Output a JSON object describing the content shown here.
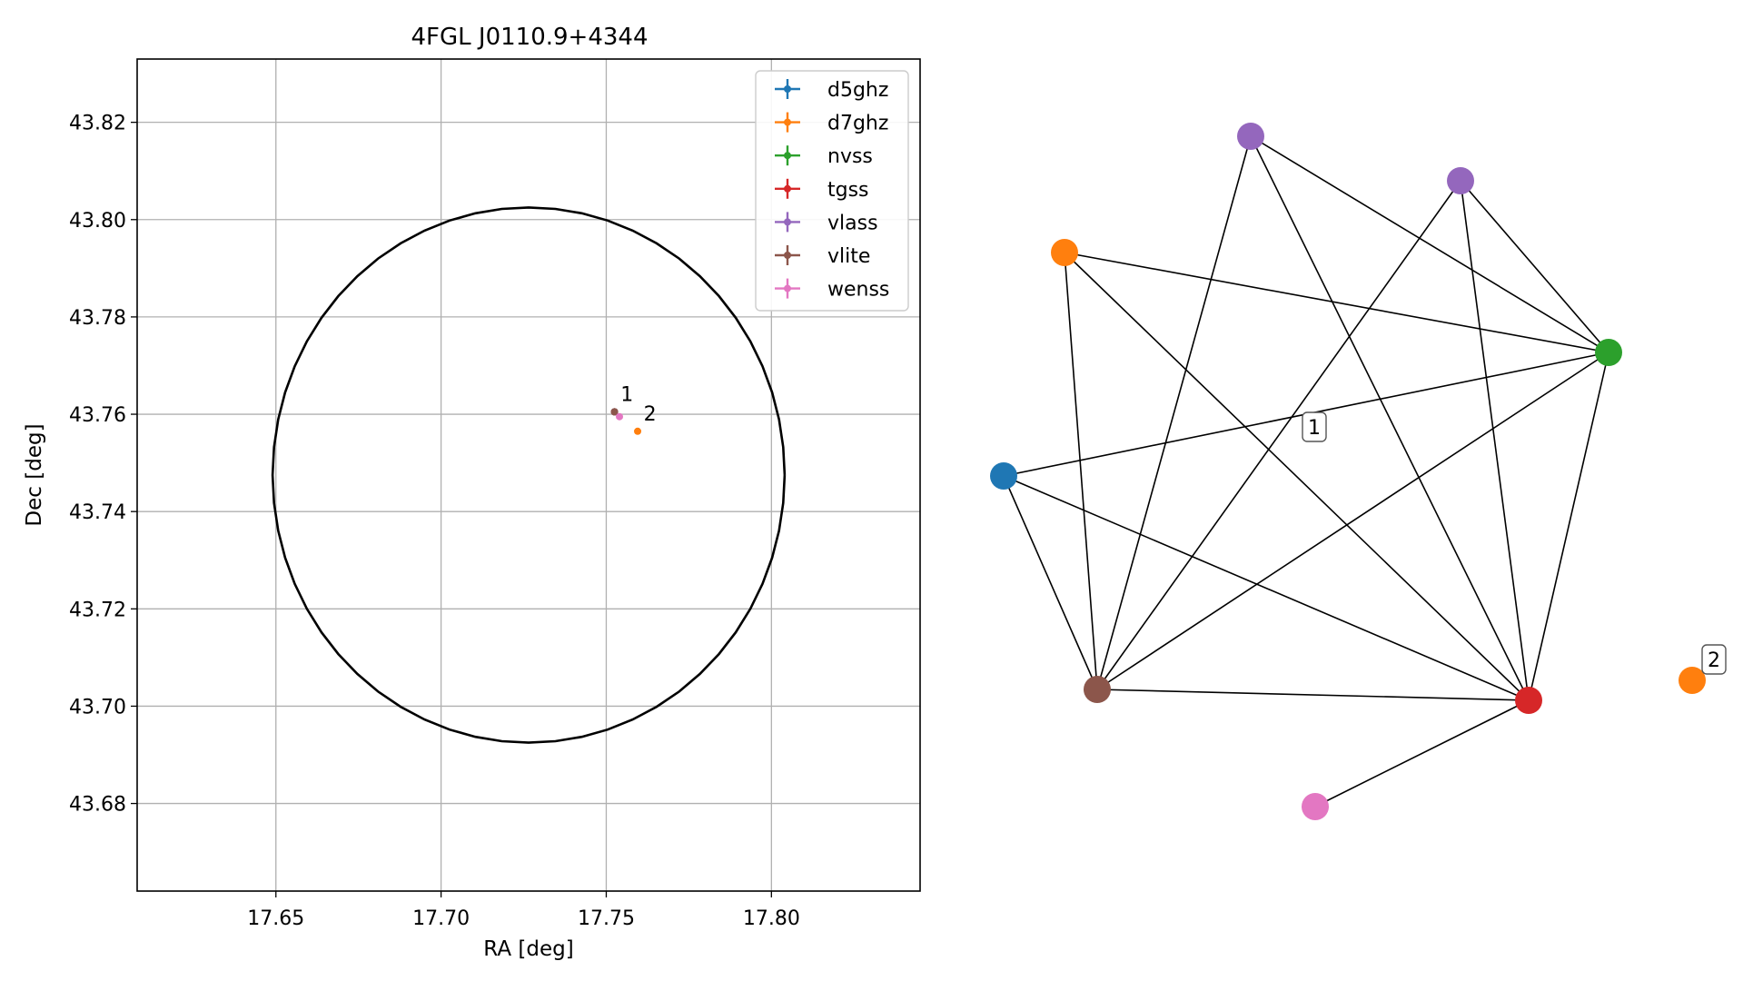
{
  "chart_data": [
    {
      "type": "scatter",
      "title": "4FGL J0110.9+4344",
      "xlabel": "RA [deg]",
      "ylabel": "Dec [deg]",
      "xlim": [
        17.608,
        17.845
      ],
      "ylim": [
        43.662,
        43.833
      ],
      "xticks": [
        17.65,
        17.7,
        17.75,
        17.8
      ],
      "xtick_labels": [
        "17.65",
        "17.70",
        "17.75",
        "17.80"
      ],
      "yticks": [
        43.68,
        43.7,
        43.72,
        43.74,
        43.76,
        43.78,
        43.8,
        43.82
      ],
      "ytick_labels": [
        "43.68",
        "43.70",
        "43.72",
        "43.74",
        "43.76",
        "43.78",
        "43.80",
        "43.82"
      ],
      "grid": true,
      "legend_position": "top-right",
      "ellipse": {
        "center": [
          17.7265,
          43.7475
        ],
        "semi_axis_ra": 0.0775,
        "semi_axis_dec": 0.055
      },
      "series": [
        {
          "name": "d5ghz",
          "color": "#1f77b4",
          "points": [
            {
              "x": 17.7525,
              "y": 43.7605
            }
          ]
        },
        {
          "name": "d7ghz",
          "color": "#ff7f0e",
          "points": [
            {
              "x": 17.7525,
              "y": 43.7605
            },
            {
              "x": 17.7595,
              "y": 43.7565
            }
          ]
        },
        {
          "name": "nvss",
          "color": "#2ca02c",
          "points": [
            {
              "x": 17.7525,
              "y": 43.7605
            }
          ]
        },
        {
          "name": "tgss",
          "color": "#d62728",
          "points": [
            {
              "x": 17.7525,
              "y": 43.7605
            }
          ]
        },
        {
          "name": "vlass",
          "color": "#9467bd",
          "points": [
            {
              "x": 17.7525,
              "y": 43.7605
            }
          ]
        },
        {
          "name": "vlite",
          "color": "#8c564b",
          "points": [
            {
              "x": 17.7525,
              "y": 43.7605
            }
          ]
        },
        {
          "name": "wenss",
          "color": "#e377c2",
          "points": [
            {
              "x": 17.754,
              "y": 43.7595
            }
          ]
        }
      ],
      "annotations": [
        {
          "text": "1",
          "x": 17.7535,
          "y": 43.762
        },
        {
          "text": "2",
          "x": 17.7605,
          "y": 43.758
        }
      ]
    },
    {
      "type": "network",
      "nodes": [
        {
          "id": "n1",
          "color": "#9467bd"
        },
        {
          "id": "n2",
          "color": "#9467bd"
        },
        {
          "id": "n3",
          "color": "#ff7f0e"
        },
        {
          "id": "n4",
          "color": "#2ca02c"
        },
        {
          "id": "n5",
          "color": "#1f77b4"
        },
        {
          "id": "n6",
          "color": "#8c564b"
        },
        {
          "id": "n7",
          "color": "#d62728"
        },
        {
          "id": "n8",
          "color": "#e377c2"
        },
        {
          "id": "n9",
          "color": "#ff7f0e"
        }
      ],
      "edges": [
        [
          "n1",
          "n4"
        ],
        [
          "n1",
          "n6"
        ],
        [
          "n1",
          "n7"
        ],
        [
          "n2",
          "n4"
        ],
        [
          "n2",
          "n6"
        ],
        [
          "n2",
          "n7"
        ],
        [
          "n3",
          "n4"
        ],
        [
          "n3",
          "n6"
        ],
        [
          "n3",
          "n7"
        ],
        [
          "n4",
          "n5"
        ],
        [
          "n4",
          "n6"
        ],
        [
          "n4",
          "n7"
        ],
        [
          "n5",
          "n6"
        ],
        [
          "n5",
          "n7"
        ],
        [
          "n6",
          "n7"
        ],
        [
          "n7",
          "n8"
        ]
      ],
      "labels": [
        {
          "text": "1"
        },
        {
          "text": "2"
        }
      ]
    }
  ]
}
